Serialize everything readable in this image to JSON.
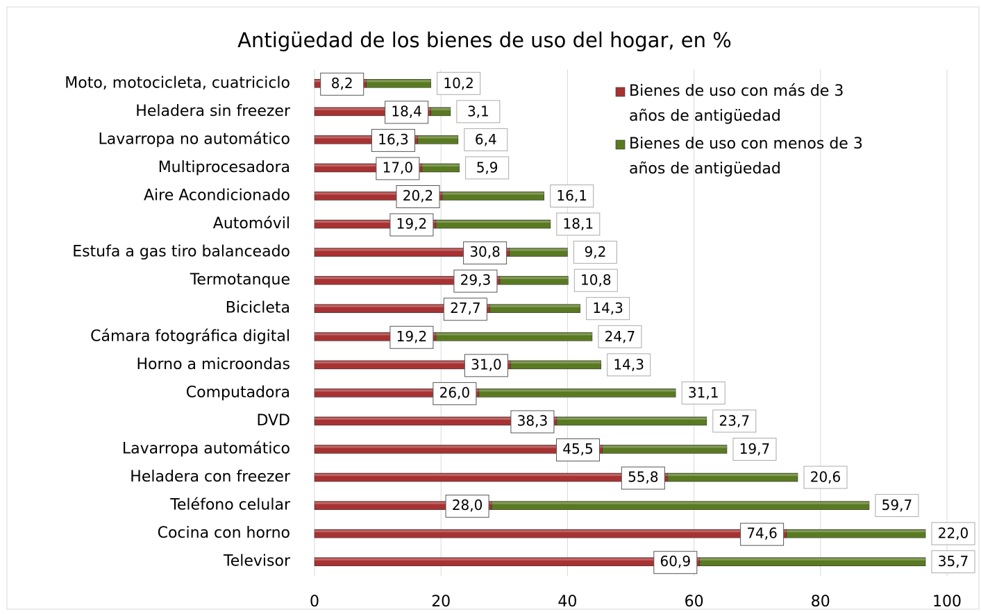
{
  "chart_data": {
    "type": "stacked_bar_horizontal",
    "title": "Antigüedad de los bienes de uso del hogar, en %",
    "categories": [
      "Moto, motocicleta, cuatriciclo",
      "Heladera sin freezer",
      "Lavarropa no automático",
      "Multiprocesadora",
      "Aire Acondicionado",
      "Automóvil",
      "Estufa a gas tiro balanceado",
      "Termotanque",
      "Bicicleta",
      "Cámara fotográfica digital",
      "Horno a microondas",
      "Computadora",
      "DVD",
      "Lavarropa automático",
      "Heladera con freezer",
      "Teléfono celular",
      "Cocina con horno",
      "Televisor"
    ],
    "series": [
      {
        "name": "Bienes de uso con más de 3 años de antigüedad",
        "color": "#a83232",
        "values": [
          8.2,
          18.4,
          16.3,
          17.0,
          20.2,
          19.2,
          30.8,
          29.3,
          27.7,
          19.2,
          31.0,
          26.0,
          38.3,
          45.5,
          55.8,
          28.0,
          74.6,
          60.9
        ],
        "value_labels": [
          "8,2",
          "18,4",
          "16,3",
          "17,0",
          "20,2",
          "19,2",
          "30,8",
          "29,3",
          "27,7",
          "19,2",
          "31,0",
          "26,0",
          "38,3",
          "45,5",
          "55,8",
          "28,0",
          "74,6",
          "60,9"
        ]
      },
      {
        "name": "Bienes de uso con menos de 3 años de antigüedad",
        "color": "#5a7a22",
        "values": [
          10.2,
          3.1,
          6.4,
          5.9,
          16.1,
          18.1,
          9.2,
          10.8,
          14.3,
          24.7,
          14.3,
          31.1,
          23.7,
          19.7,
          20.6,
          59.7,
          22.0,
          35.7
        ],
        "value_labels": [
          "10,2",
          "3,1",
          "6,4",
          "5,9",
          "16,1",
          "18,1",
          "9,2",
          "10,8",
          "14,3",
          "24,7",
          "14,3",
          "31,1",
          "23,7",
          "19,7",
          "20,6",
          "59,7",
          "22,0",
          "35,7"
        ]
      }
    ],
    "xlim": [
      0,
      100
    ],
    "xticks": [
      0,
      20,
      40,
      60,
      80,
      100
    ],
    "grid": true,
    "legend": "top-right"
  }
}
